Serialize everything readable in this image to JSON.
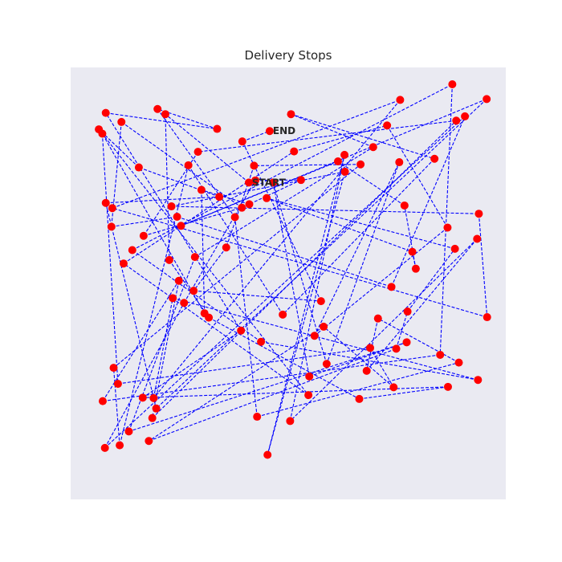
{
  "chart_data": {
    "type": "scatter",
    "title": "Delivery Stops",
    "xlabel": "",
    "ylabel": "",
    "grid": false,
    "series": [
      {
        "points": [
          [
            38.9,
            24.6
          ],
          [
            19.7,
            8.8
          ],
          [
            20.6,
            42.5
          ],
          [
            29.7,
            55.8
          ],
          [
            64.3,
            74.6
          ],
          [
            84.7,
            71.8
          ],
          [
            14.5,
            74.3
          ],
          [
            37.1,
            58.8
          ],
          [
            6.0,
            8.5
          ],
          [
            31.6,
            12.2
          ],
          [
            17.9,
            7.6
          ],
          [
            35.7,
            32.6
          ],
          [
            40.8,
            78.7
          ],
          [
            87.2,
            66.2
          ],
          [
            68.6,
            56.0
          ],
          [
            66.0,
            68.1
          ],
          [
            91.4,
            37.6
          ],
          [
            48.4,
            79.7
          ],
          [
            60.9,
            18.2
          ],
          [
            43.2,
            87.5
          ],
          [
            61.0,
            22.1
          ],
          [
            21.1,
            30.1
          ],
          [
            91.8,
            31.8
          ],
          [
            93.7,
            55.7
          ],
          [
            7.5,
            30.5
          ],
          [
            73.7,
            5.5
          ],
          [
            17.0,
            74.4
          ],
          [
            21.4,
            51.3
          ],
          [
            91.6,
            70.2
          ],
          [
            41.7,
            61.4
          ],
          [
            12.1,
            40.2
          ],
          [
            85.7,
            1.9
          ],
          [
            82.9,
            64.4
          ],
          [
            5.3,
            75.1
          ],
          [
            22.8,
            47.3
          ],
          [
            16.7,
            79.0
          ],
          [
            86.6,
            10.3
          ],
          [
            27.2,
            17.5
          ],
          [
            14.7,
            36.9
          ],
          [
            37.3,
            30.4
          ],
          [
            9.6,
            10.6
          ],
          [
            7.3,
            34.8
          ],
          [
            22.4,
            32.5
          ],
          [
            71.7,
            48.7
          ],
          [
            88.6,
            9.3
          ],
          [
            5.8,
            85.9
          ],
          [
            24.0,
            52.4
          ],
          [
            40.4,
            24.1
          ],
          [
            50.9,
            24.0
          ],
          [
            39.0,
            29.6
          ],
          [
            28.0,
            26.3
          ],
          [
            28.7,
            54.8
          ],
          [
            5.2,
            13.3
          ],
          [
            8.8,
            71.1
          ],
          [
            66.8,
            62.8
          ],
          [
            72.2,
            71.9
          ],
          [
            56.1,
            57.9
          ],
          [
            15.9,
            84.3
          ],
          [
            72.8,
            63.0
          ],
          [
            75.4,
            54.4
          ],
          [
            86.3,
            39.9
          ],
          [
            43.0,
            28.2
          ],
          [
            76.5,
            40.6
          ],
          [
            77.3,
            44.5
          ],
          [
            74.7,
            29.9
          ],
          [
            59.4,
            19.7
          ],
          [
            23.3,
            34.6
          ],
          [
            93.6,
            5.3
          ],
          [
            17.6,
            76.8
          ],
          [
            6.0,
            29.3
          ],
          [
            32.1,
            27.9
          ],
          [
            13.6,
            21.1
          ],
          [
            4.4,
            12.3
          ],
          [
            52.6,
            73.7
          ],
          [
            10.1,
            43.3
          ],
          [
            49.3,
            17.4
          ],
          [
            70.7,
            11.4
          ],
          [
            84.6,
            35.0
          ],
          [
            54.0,
            60.0
          ],
          [
            73.5,
            19.9
          ],
          [
            56.8,
            66.5
          ],
          [
            44.5,
            24.6
          ],
          [
            52.8,
            69.4
          ],
          [
            75.2,
            61.5
          ],
          [
            11.3,
            82.1
          ],
          [
            26.5,
            41.8
          ],
          [
            67.5,
            16.4
          ],
          [
            48.6,
            8.8
          ],
          [
            81.6,
            19.1
          ],
          [
            46.7,
            55.1
          ],
          [
            25.0,
            20.6
          ],
          [
            9.2,
            85.3
          ],
          [
            7.8,
            67.4
          ],
          [
            64.6,
            20.4
          ],
          [
            40.1,
            20.7
          ],
          [
            33.7,
            39.6
          ],
          [
            26.2,
            49.6
          ],
          [
            55.5,
            52.0
          ],
          [
            37.4,
            15.1
          ],
          [
            43.7,
            12.7
          ]
        ]
      }
    ],
    "annotations": [
      {
        "text": "START",
        "x": 38.9,
        "y": 24.6
      },
      {
        "text": "END",
        "x": 43.7,
        "y": 12.7
      }
    ],
    "xlim": [
      -2.08,
      98.0
    ],
    "ylim": [
      -2.0,
      97.8
    ],
    "colors": {
      "background": "#eaeaf2",
      "point": "#ff0000",
      "route": "#0000ff"
    }
  }
}
